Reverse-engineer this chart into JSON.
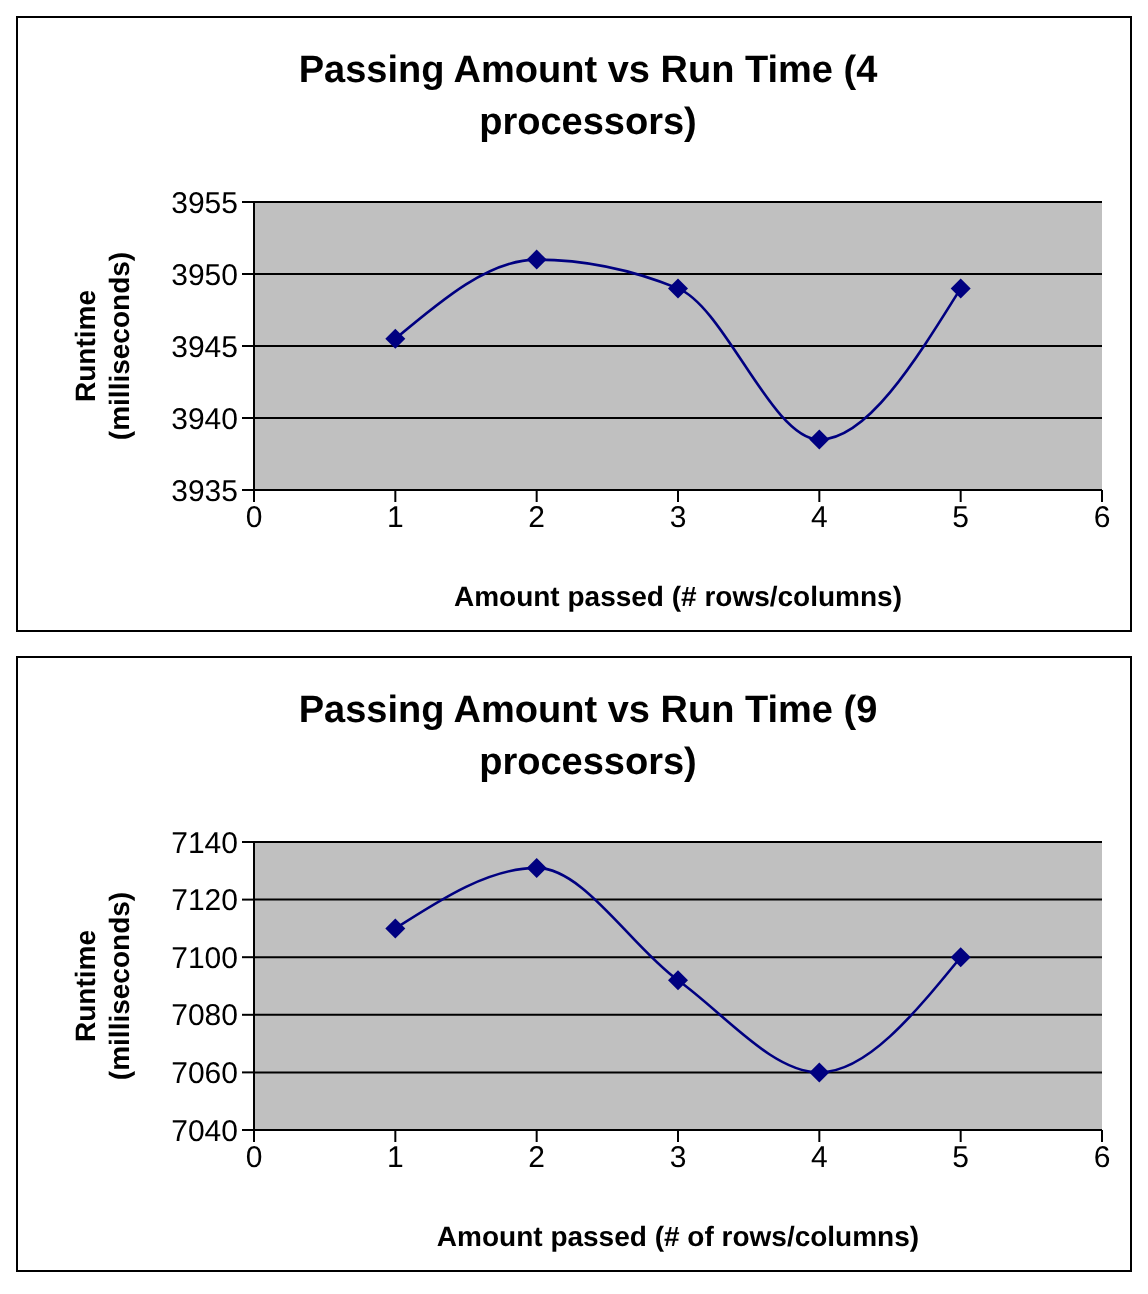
{
  "chart_data": [
    {
      "type": "line",
      "title": "Passing Amount vs Run Time (4 processors)",
      "xlabel": "Amount passed (# rows/columns)",
      "ylabel": "Runtime (milliseconds)",
      "x": [
        1,
        2,
        3,
        4,
        5
      ],
      "series": [
        {
          "color": "#000080",
          "values": [
            3945.5,
            3951,
            3949,
            3938.5,
            3949
          ]
        }
      ],
      "xlim": [
        0,
        6
      ],
      "xticks": [
        0,
        1,
        2,
        3,
        4,
        5,
        6
      ],
      "ylim": [
        3935,
        3955
      ],
      "yticks": [
        3935,
        3940,
        3945,
        3950,
        3955
      ],
      "grid": "y",
      "marker": "diamond",
      "line_style": "solid"
    },
    {
      "type": "line",
      "title": "Passing Amount vs Run Time (9 processors)",
      "xlabel": "Amount passed (# of rows/columns)",
      "ylabel": "Runtime (milliseconds)",
      "x": [
        1,
        2,
        3,
        4,
        5
      ],
      "series": [
        {
          "color": "#000080",
          "values": [
            7110,
            7131,
            7092,
            7060,
            7100
          ]
        }
      ],
      "xlim": [
        0,
        6
      ],
      "xticks": [
        0,
        1,
        2,
        3,
        4,
        5,
        6
      ],
      "ylim": [
        7040,
        7140
      ],
      "yticks": [
        7040,
        7060,
        7080,
        7100,
        7120,
        7140
      ],
      "grid": "y",
      "marker": "diamond",
      "line_style": "solid"
    }
  ]
}
